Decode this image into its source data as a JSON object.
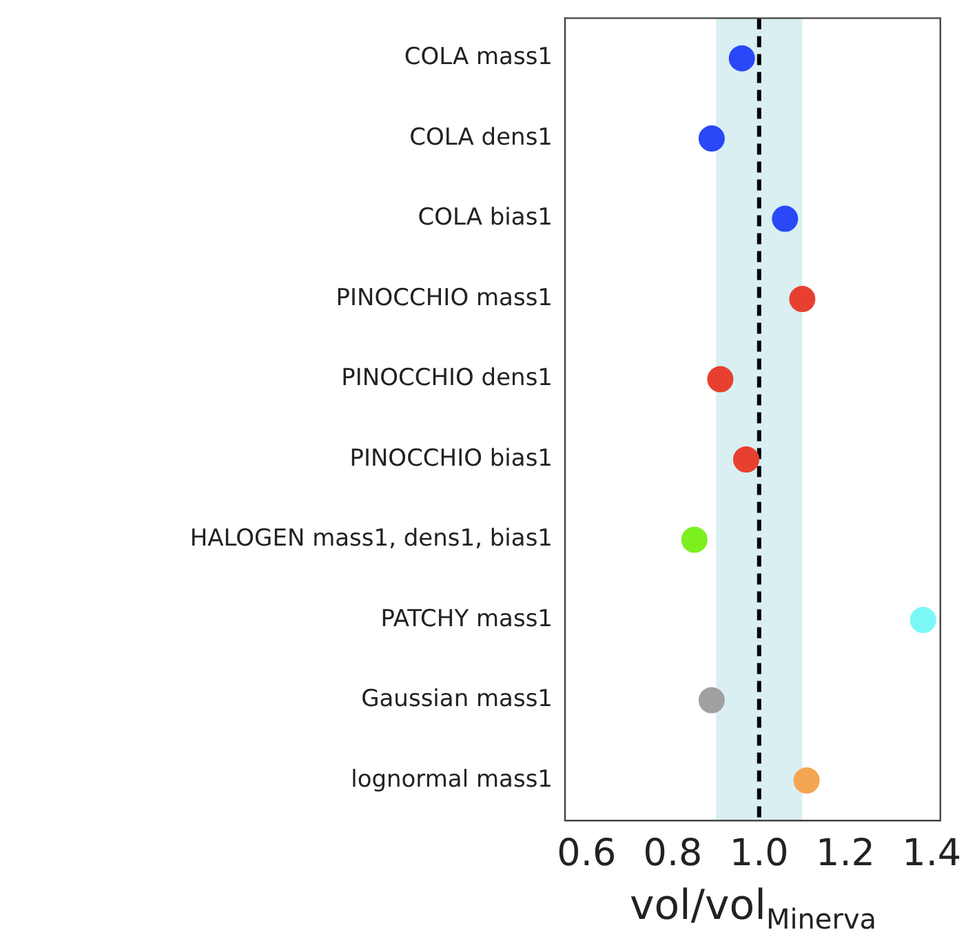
{
  "chart_data": {
    "type": "scatter",
    "orientation": "horizontal",
    "categories": [
      "COLA mass1",
      "COLA dens1",
      "COLA bias1",
      "PINOCCHIO mass1",
      "PINOCCHIO dens1",
      "PINOCCHIO bias1",
      "HALOGEN mass1, dens1, bias1",
      "PATCHY mass1",
      "Gaussian mass1",
      "lognormal mass1"
    ],
    "values": [
      0.96,
      0.89,
      1.06,
      1.1,
      0.91,
      0.97,
      0.85,
      1.38,
      0.89,
      1.11
    ],
    "colors": [
      "#2a48f7",
      "#2a48f7",
      "#2a48f7",
      "#e84030",
      "#e84030",
      "#e84030",
      "#7cf01f",
      "#7cf7f7",
      "#a0a0a0",
      "#f4a552"
    ],
    "xlabel": "vol/vol$_{Minerva}$",
    "xlim": [
      0.55,
      1.42
    ],
    "xticks": [
      {
        "value": 0.6,
        "label": "0.6"
      },
      {
        "value": 0.8,
        "label": "0.8"
      },
      {
        "value": 1,
        "label": "1.0"
      },
      {
        "value": 1.2,
        "label": "1.2"
      },
      {
        "value": 1.4,
        "label": "1.4"
      }
    ],
    "ref_lines": [
      {
        "axis": "x",
        "value": 1.0,
        "color": "#000000",
        "line_style": "dashed"
      }
    ],
    "bands": [
      {
        "axis": "x",
        "from": 0.9,
        "to": 1.1,
        "color": "#d9eff2"
      }
    ],
    "marker": "circle",
    "grid": false,
    "legend": false
  }
}
